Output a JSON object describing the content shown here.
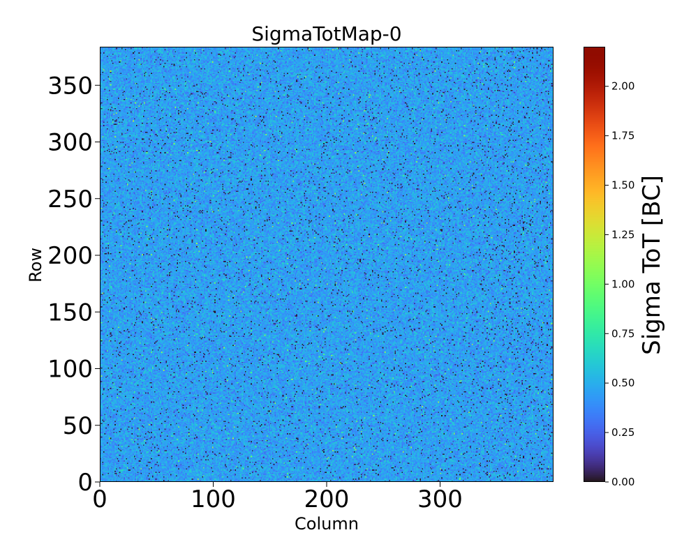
{
  "chart_data": {
    "type": "heatmap",
    "title": "SigmaTotMap-0",
    "xlabel": "Column",
    "ylabel": "Row",
    "xlim": [
      0,
      400
    ],
    "ylim": [
      0,
      384
    ],
    "xticks": [
      0,
      100,
      200,
      300
    ],
    "yticks": [
      0,
      50,
      100,
      150,
      200,
      250,
      300,
      350
    ],
    "xtick_labels": [
      "0",
      "100",
      "200",
      "300"
    ],
    "ytick_labels": [
      "0",
      "50",
      "100",
      "150",
      "200",
      "250",
      "300",
      "350"
    ],
    "colormap": "turbo",
    "colorbar": {
      "label": "Sigma ToT [BC]",
      "vmin": 0.0,
      "vmax": 2.2,
      "ticks": [
        0.0,
        0.25,
        0.5,
        0.75,
        1.0,
        1.25,
        1.5,
        1.75,
        2.0
      ],
      "tick_labels": [
        "0.00",
        "0.25",
        "0.50",
        "0.75",
        "1.00",
        "1.25",
        "1.50",
        "1.75",
        "2.00"
      ]
    },
    "value_distribution": {
      "typical_value": 0.45,
      "spread": 0.08,
      "dead_pixel_value": 0.0,
      "dead_pixel_fraction": 0.03,
      "hot_pixel_value": 1.2,
      "hot_pixel_fraction": 0.004
    }
  }
}
